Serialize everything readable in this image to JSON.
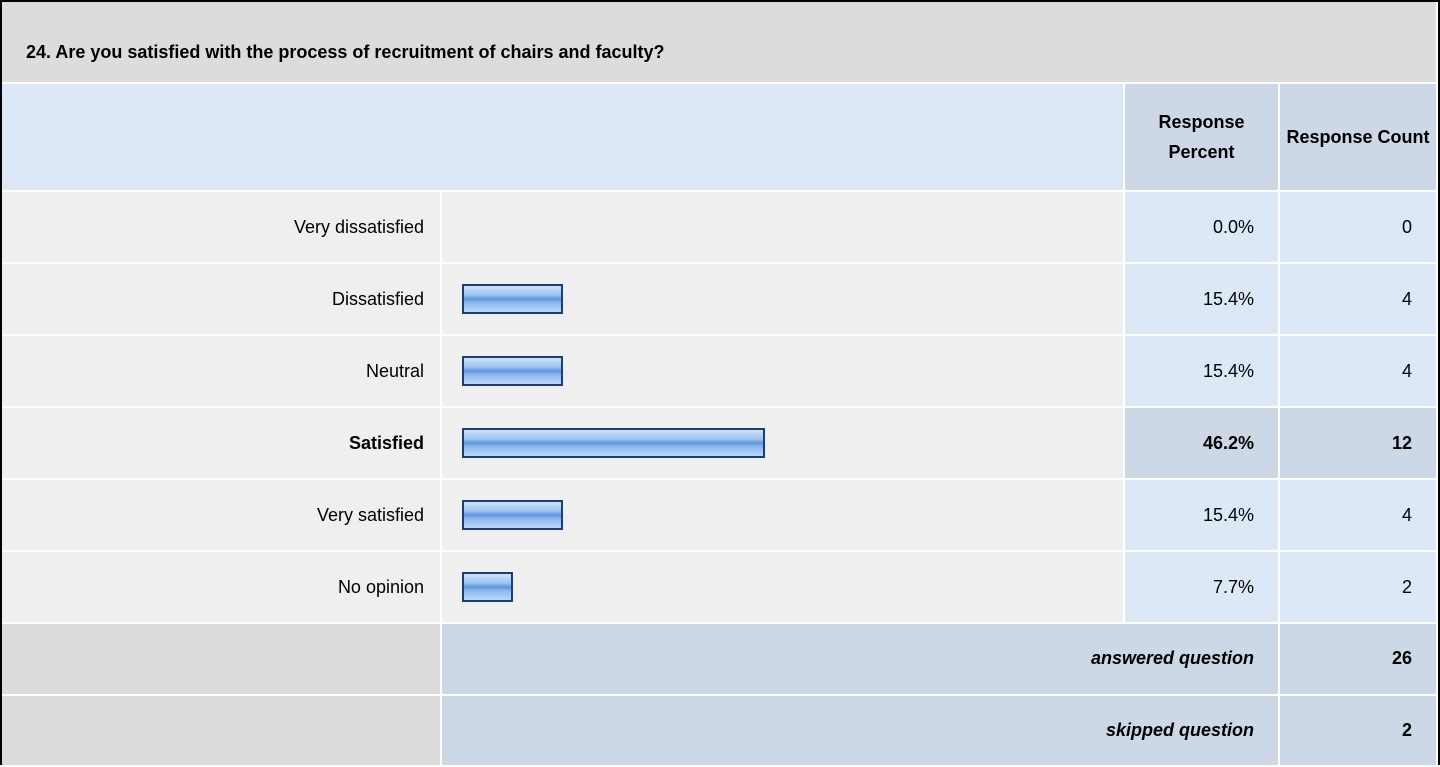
{
  "title": "24. Are you satisfied with the process of recruitment of chairs and faculty?",
  "columns": [
    "Response Percent",
    "Response Count"
  ],
  "rows": [
    {
      "label": "Very dissatisfied",
      "percent": {
        "value": 0.0,
        "label": "0.0%"
      },
      "count": 0
    },
    {
      "label": "Dissatisfied",
      "percent": {
        "value": 15.4,
        "label": "15.4%"
      },
      "count": 4
    },
    {
      "label": "Neutral",
      "percent": {
        "value": 15.4,
        "label": "15.4%"
      },
      "count": 4
    },
    {
      "label": "Satisfied",
      "percent": {
        "value": 46.2,
        "label": "46.2%"
      },
      "count": 12,
      "emphasis": true
    },
    {
      "label": "Very satisfied",
      "percent": {
        "value": 15.4,
        "label": "15.4%"
      },
      "count": 4
    },
    {
      "label": "No opinion",
      "percent": {
        "value": 7.7,
        "label": "7.7%"
      },
      "count": 2
    }
  ],
  "summary": [
    {
      "label": "answered question",
      "count": 26
    },
    {
      "label": "skipped question",
      "count": 2
    }
  ]
}
